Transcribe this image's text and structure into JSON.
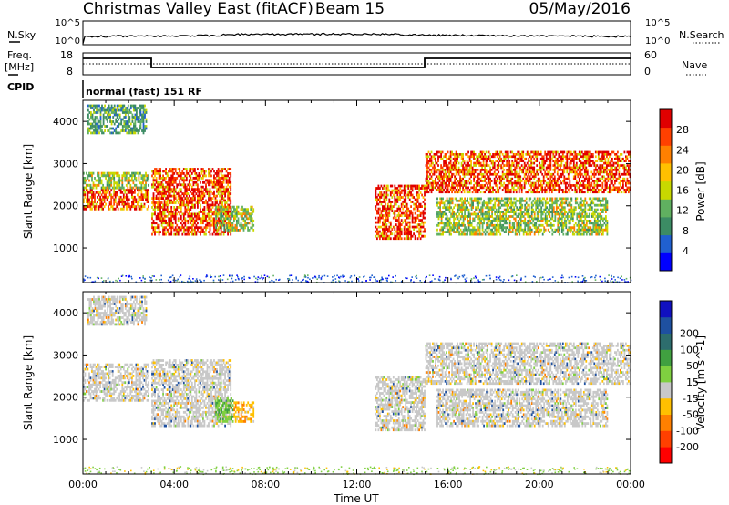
{
  "header": {
    "station": "Christmas Valley East (fitACF)",
    "beam": "Beam 15",
    "date": "05/May/2016"
  },
  "panels_labels": {
    "nsky": "N.Sky",
    "nsearch": "N.Search",
    "freq_line1": "Freq.",
    "freq_line2": "[MHz]",
    "nave": "Nave",
    "cpid": "CPID",
    "mode": "normal (fast) 151 RF",
    "noise_ticks_left": [
      "10^5",
      "10^0"
    ],
    "noise_ticks_right": [
      "10^5",
      "10^0"
    ],
    "freq_ticks": [
      "18",
      "8"
    ],
    "nave_ticks": [
      "60",
      "0"
    ]
  },
  "colors": {
    "power_scale": [
      "#0000ff",
      "#2060d0",
      "#3c8c64",
      "#60b060",
      "#c8d800",
      "#ffc000",
      "#ff8000",
      "#ff4000",
      "#e00000"
    ],
    "velocity_scale": [
      "#ff0000",
      "#ff4000",
      "#ff8000",
      "#ffc000",
      "#c8c8c8",
      "#7fd040",
      "#40a040",
      "#2d6d6d",
      "#1e50a0",
      "#1010c0"
    ]
  },
  "chart_data": [
    {
      "type": "heatmap",
      "name": "power",
      "ylabel": "Slant Range [km]",
      "colorbar_label": "Power [dB]",
      "colorbar_ticks": [
        "4",
        "8",
        "12",
        "16",
        "20",
        "24",
        "28"
      ],
      "xlim": [
        0,
        24
      ],
      "ylim": [
        180,
        4500
      ],
      "yticks": [
        "1000",
        "2000",
        "3000",
        "4000"
      ],
      "features": [
        {
          "t0": 0.0,
          "t1": 2.9,
          "r0": 1900,
          "r1": 2400,
          "level": "high"
        },
        {
          "t0": 0.0,
          "t1": 2.9,
          "r0": 2400,
          "r1": 2800,
          "level": "mid"
        },
        {
          "t0": 0.2,
          "t1": 2.8,
          "r0": 3700,
          "r1": 4400,
          "level": "low"
        },
        {
          "t0": 3.0,
          "t1": 6.5,
          "r0": 1300,
          "r1": 2900,
          "level": "high"
        },
        {
          "t0": 5.8,
          "t1": 7.5,
          "r0": 1400,
          "r1": 2000,
          "level": "mid"
        },
        {
          "t0": 12.8,
          "t1": 15.0,
          "r0": 1200,
          "r1": 2500,
          "level": "high"
        },
        {
          "t0": 15.0,
          "t1": 24.0,
          "r0": 2300,
          "r1": 3300,
          "level": "high"
        },
        {
          "t0": 15.5,
          "t1": 23.0,
          "r0": 1300,
          "r1": 2200,
          "level": "mid"
        }
      ]
    },
    {
      "type": "heatmap",
      "name": "velocity",
      "xlabel": "Time UT",
      "ylabel": "Slant Range [km]",
      "colorbar_label": "Velocity [m s^-1]",
      "colorbar_ticks": [
        "-200",
        "-100",
        "-50",
        "-15",
        "15",
        "50",
        "100",
        "200"
      ],
      "xlim": [
        0,
        24
      ],
      "ylim": [
        180,
        4500
      ],
      "xticks": [
        "00:00",
        "04:00",
        "08:00",
        "12:00",
        "16:00",
        "20:00",
        "00:00"
      ],
      "yticks": [
        "1000",
        "2000",
        "3000",
        "4000"
      ],
      "features": [
        {
          "t0": 0.0,
          "t1": 2.9,
          "r0": 1900,
          "r1": 2800,
          "level": "ground"
        },
        {
          "t0": 0.2,
          "t1": 2.8,
          "r0": 3700,
          "r1": 4400,
          "level": "ground"
        },
        {
          "t0": 3.0,
          "t1": 6.5,
          "r0": 1300,
          "r1": 2900,
          "level": "ground"
        },
        {
          "t0": 5.8,
          "t1": 6.6,
          "r0": 1400,
          "r1": 2000,
          "level": "green"
        },
        {
          "t0": 6.6,
          "t1": 7.5,
          "r0": 1400,
          "r1": 1900,
          "level": "orange"
        },
        {
          "t0": 12.8,
          "t1": 15.0,
          "r0": 1200,
          "r1": 2500,
          "level": "ground"
        },
        {
          "t0": 15.0,
          "t1": 24.0,
          "r0": 2300,
          "r1": 3300,
          "level": "ground"
        },
        {
          "t0": 15.5,
          "t1": 23.0,
          "r0": 1300,
          "r1": 2200,
          "level": "ground"
        }
      ]
    }
  ]
}
